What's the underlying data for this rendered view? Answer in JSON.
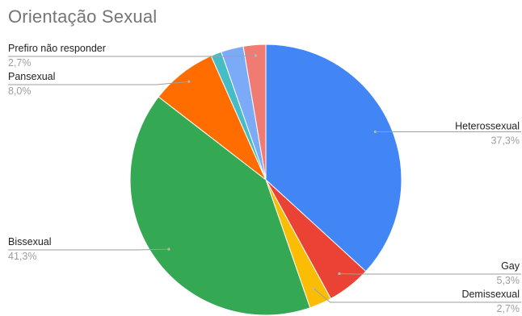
{
  "chart_data": {
    "type": "pie",
    "title": "Orientação Sexual",
    "slices": [
      {
        "label": "Heterossexual",
        "value": 37.3,
        "value_label": "37,3%",
        "color": "#4285f4"
      },
      {
        "label": "Gay",
        "value": 5.3,
        "value_label": "5,3%",
        "color": "#ea4335"
      },
      {
        "label": "Demissexual",
        "value": 2.7,
        "value_label": "2,7%",
        "color": "#fbbc04"
      },
      {
        "label": "Bissexual",
        "value": 41.3,
        "value_label": "41,3%",
        "color": "#34a853"
      },
      {
        "label": "Pansexual",
        "value": 8.0,
        "value_label": "8,0%",
        "color": "#ff6d01"
      },
      {
        "label": "",
        "value": 1.3,
        "value_label": "",
        "color": "#46bdc6"
      },
      {
        "label": "",
        "value": 2.7,
        "value_label": "",
        "color": "#7baaf7"
      },
      {
        "label": "Prefiro não responder",
        "value": 2.7,
        "value_label": "2,7%",
        "color": "#f07b72"
      }
    ],
    "legend": "none"
  }
}
